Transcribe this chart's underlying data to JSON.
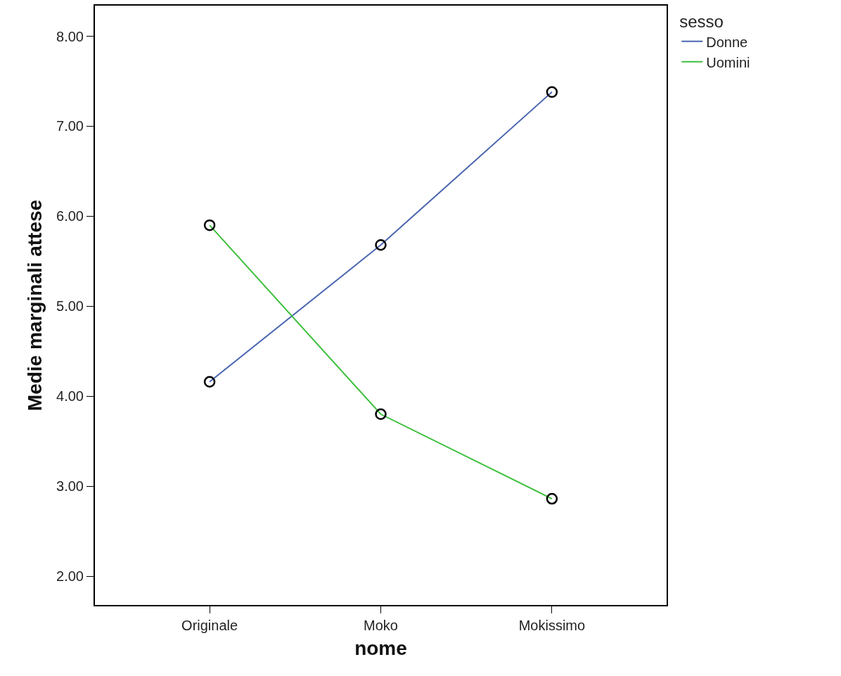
{
  "chart_data": {
    "type": "line",
    "xlabel": "nome",
    "ylabel": "Medie marginali attese",
    "legend_title": "sesso",
    "categories": [
      "Originale",
      "Moko",
      "Mokissimo"
    ],
    "series": [
      {
        "name": "Donne",
        "color": "#4a65b0",
        "values": [
          4.16,
          5.68,
          7.38
        ]
      },
      {
        "name": "Uomini",
        "color": "#3cbf3c",
        "values": [
          5.9,
          3.8,
          2.86
        ]
      }
    ],
    "ylim": [
      1.68,
      8.34
    ],
    "yticks": [
      {
        "value": 2,
        "label": "2.00"
      },
      {
        "value": 3,
        "label": "3.00"
      },
      {
        "value": 4,
        "label": "4.00"
      },
      {
        "value": 5,
        "label": "5.00"
      },
      {
        "value": 6,
        "label": "6.00"
      },
      {
        "value": 7,
        "label": "7.00"
      },
      {
        "value": 8,
        "label": "8.00"
      }
    ],
    "marker": "circle",
    "grid": false,
    "legend": "top right"
  }
}
